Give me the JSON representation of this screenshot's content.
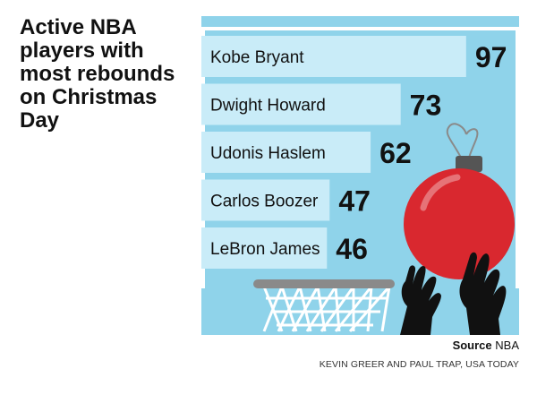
{
  "title": "Active NBA players with most rebounds on Christmas Day",
  "source_label": "Source",
  "source_value": "NBA",
  "credit": "KEVIN GREER AND PAUL TRAP, USA TODAY",
  "colors": {
    "panel_bg": "#8fd3ea",
    "bar": "#c9ecf8",
    "text": "#111111",
    "rim": "#8a8a8a",
    "net": "#ffffff",
    "ornament": "#d9282f",
    "ornament_cap": "#555555",
    "hands": "#111111"
  },
  "chart_data": {
    "type": "bar",
    "orientation": "horizontal",
    "title": "Active NBA players with most rebounds on Christmas Day",
    "categories": [
      "Kobe Bryant",
      "Dwight Howard",
      "Udonis Haslem",
      "Carlos Boozer",
      "LeBron James"
    ],
    "values": [
      97,
      73,
      62,
      47,
      46
    ],
    "data_labels": [
      "97",
      "73",
      "62",
      "47",
      "46"
    ],
    "xlabel": "",
    "ylabel": "",
    "xlim": [
      0,
      100
    ],
    "grid": false,
    "legend": "none"
  }
}
